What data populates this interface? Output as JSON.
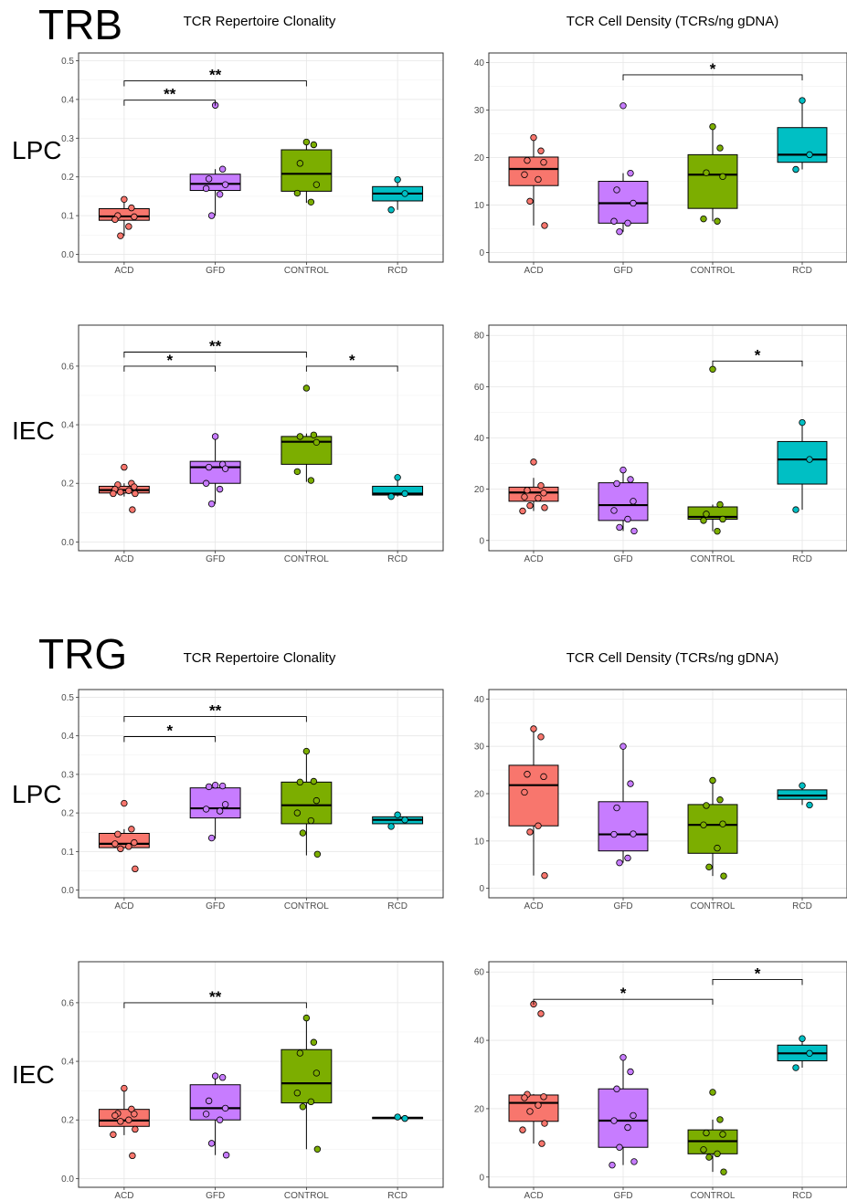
{
  "figure": {
    "sections": [
      {
        "label": "TRB",
        "clonality_title": "TCR Repertoire Clonality",
        "density_title": "TCR Cell Density (TCRs/ng gDNA)"
      },
      {
        "label": "TRG",
        "clonality_title": "TCR Repertoire Clonality",
        "density_title": "TCR Cell Density (TCRs/ng gDNA)"
      }
    ],
    "row_labels": [
      "LPC",
      "IEC",
      "LPC",
      "IEC"
    ],
    "group_colors": {
      "ACD": "#F8766D",
      "GFD": "#C77CFF",
      "CONTROL": "#7CAE00",
      "RCD": "#00BFC4"
    }
  },
  "chart_data": [
    {
      "type": "box",
      "section": "TRB",
      "row": "LPC",
      "title": "TCR Repertoire Clonality",
      "categories": [
        "ACD",
        "GFD",
        "CONTROL",
        "RCD"
      ],
      "ylim": [
        -0.02,
        0.52
      ],
      "yticks": [
        0.0,
        0.1,
        0.2,
        0.3,
        0.4,
        0.5
      ],
      "ytick_labels": [
        "0.0",
        "0.1",
        "0.2",
        "0.3",
        "0.4",
        "0.5"
      ],
      "boxes": [
        {
          "min": 0.048,
          "q1": 0.088,
          "median": 0.098,
          "q3": 0.118,
          "max": 0.142
        },
        {
          "min": 0.1,
          "q1": 0.165,
          "median": 0.182,
          "q3": 0.207,
          "max": 0.22
        },
        {
          "min": 0.133,
          "q1": 0.163,
          "median": 0.208,
          "q3": 0.27,
          "max": 0.29
        },
        {
          "min": 0.115,
          "q1": 0.138,
          "median": 0.157,
          "q3": 0.175,
          "max": 0.193
        }
      ],
      "points": [
        {
          "group": "ACD",
          "values": [
            0.142,
            0.12,
            0.1,
            0.097,
            0.09,
            0.072,
            0.048
          ]
        },
        {
          "group": "GFD",
          "values": [
            0.385,
            0.22,
            0.195,
            0.18,
            0.17,
            0.155,
            0.1
          ]
        },
        {
          "group": "CONTROL",
          "values": [
            0.29,
            0.283,
            0.235,
            0.18,
            0.158,
            0.135
          ]
        },
        {
          "group": "RCD",
          "values": [
            0.193,
            0.157,
            0.115
          ]
        }
      ],
      "significance": [
        {
          "from": "ACD",
          "to": "GFD",
          "y": 0.398,
          "label": "**"
        },
        {
          "from": "ACD",
          "to": "CONTROL",
          "y": 0.448,
          "label": "**"
        }
      ]
    },
    {
      "type": "box",
      "section": "TRB",
      "row": "LPC",
      "title": "TCR Cell Density (TCRs/ng gDNA)",
      "categories": [
        "ACD",
        "GFD",
        "CONTROL",
        "RCD"
      ],
      "ylim": [
        -2,
        42
      ],
      "yticks": [
        0,
        10,
        20,
        30,
        40
      ],
      "ytick_labels": [
        "0",
        "10",
        "20",
        "30",
        "40"
      ],
      "boxes": [
        {
          "min": 5.7,
          "q1": 14.1,
          "median": 17.6,
          "q3": 20.1,
          "max": 24.2
        },
        {
          "min": 4.4,
          "q1": 6.2,
          "median": 10.4,
          "q3": 15.0,
          "max": 16.7
        },
        {
          "min": 6.6,
          "q1": 9.3,
          "median": 16.4,
          "q3": 20.6,
          "max": 26.5
        },
        {
          "min": 17.5,
          "q1": 19.0,
          "median": 20.6,
          "q3": 26.3,
          "max": 32.0
        }
      ],
      "points": [
        {
          "group": "ACD",
          "values": [
            24.2,
            21.4,
            19.4,
            19.0,
            16.4,
            15.4,
            10.8,
            5.7
          ]
        },
        {
          "group": "GFD",
          "values": [
            30.9,
            16.7,
            13.2,
            10.4,
            6.6,
            6.2,
            4.4
          ]
        },
        {
          "group": "CONTROL",
          "values": [
            26.5,
            22.0,
            16.8,
            16.0,
            7.1,
            6.6
          ]
        },
        {
          "group": "RCD",
          "values": [
            32.0,
            20.6,
            17.5
          ]
        }
      ],
      "significance": [
        {
          "from": "GFD",
          "to": "RCD",
          "y": 37.4,
          "label": "*"
        }
      ]
    },
    {
      "type": "box",
      "section": "TRB",
      "row": "IEC",
      "title": "",
      "categories": [
        "ACD",
        "GFD",
        "CONTROL",
        "RCD"
      ],
      "ylim": [
        -0.03,
        0.74
      ],
      "yticks": [
        0.0,
        0.2,
        0.4,
        0.6
      ],
      "ytick_labels": [
        "0.0",
        "0.2",
        "0.4",
        "0.6"
      ],
      "boxes": [
        {
          "min": 0.155,
          "q1": 0.167,
          "median": 0.177,
          "q3": 0.19,
          "max": 0.2
        },
        {
          "min": 0.13,
          "q1": 0.2,
          "median": 0.255,
          "q3": 0.275,
          "max": 0.36
        },
        {
          "min": 0.205,
          "q1": 0.265,
          "median": 0.342,
          "q3": 0.36,
          "max": 0.37
        },
        {
          "min": 0.155,
          "q1": 0.16,
          "median": 0.165,
          "q3": 0.19,
          "max": 0.22
        }
      ],
      "points": [
        {
          "group": "ACD",
          "values": [
            0.255,
            0.2,
            0.195,
            0.188,
            0.18,
            0.175,
            0.17,
            0.165,
            0.165,
            0.11
          ]
        },
        {
          "group": "GFD",
          "values": [
            0.36,
            0.265,
            0.255,
            0.25,
            0.2,
            0.18,
            0.13
          ]
        },
        {
          "group": "CONTROL",
          "values": [
            0.525,
            0.365,
            0.36,
            0.34,
            0.24,
            0.21
          ]
        },
        {
          "group": "RCD",
          "values": [
            0.22,
            0.165,
            0.155
          ]
        }
      ],
      "significance": [
        {
          "from": "ACD",
          "to": "GFD",
          "y": 0.6,
          "label": "*"
        },
        {
          "from": "ACD",
          "to": "CONTROL",
          "y": 0.648,
          "label": "**"
        },
        {
          "from": "CONTROL",
          "to": "RCD",
          "y": 0.6,
          "label": "*"
        }
      ]
    },
    {
      "type": "box",
      "section": "TRB",
      "row": "IEC",
      "title": "",
      "categories": [
        "ACD",
        "GFD",
        "CONTROL",
        "RCD"
      ],
      "ylim": [
        -4,
        84
      ],
      "yticks": [
        0,
        20,
        40,
        60,
        80
      ],
      "ytick_labels": [
        "0",
        "20",
        "40",
        "60",
        "80"
      ],
      "boxes": [
        {
          "min": 11.5,
          "q1": 15.3,
          "median": 18.7,
          "q3": 20.8,
          "max": 24.4
        },
        {
          "min": 3.7,
          "q1": 7.8,
          "median": 13.8,
          "q3": 22.5,
          "max": 27.5
        },
        {
          "min": 3.6,
          "q1": 8.3,
          "median": 9.2,
          "q3": 13.1,
          "max": 14.0
        },
        {
          "min": 12.0,
          "q1": 22.0,
          "median": 31.6,
          "q3": 38.6,
          "max": 46.0
        }
      ],
      "points": [
        {
          "group": "ACD",
          "values": [
            30.6,
            21.4,
            19.6,
            18.5,
            17.0,
            16.5,
            13.6,
            12.8,
            11.5
          ]
        },
        {
          "group": "GFD",
          "values": [
            27.5,
            23.8,
            22.2,
            15.3,
            11.7,
            8.3,
            5.1,
            3.7
          ]
        },
        {
          "group": "CONTROL",
          "values": [
            66.8,
            14.0,
            10.3,
            8.3,
            7.8,
            3.6
          ]
        },
        {
          "group": "RCD",
          "values": [
            46.0,
            31.6,
            12.0
          ]
        }
      ],
      "significance": [
        {
          "from": "CONTROL",
          "to": "RCD",
          "y": 70.0,
          "label": "*"
        }
      ]
    },
    {
      "type": "box",
      "section": "TRG",
      "row": "LPC",
      "title": "TCR Repertoire Clonality",
      "categories": [
        "ACD",
        "GFD",
        "CONTROL",
        "RCD"
      ],
      "ylim": [
        -0.02,
        0.52
      ],
      "yticks": [
        0.0,
        0.1,
        0.2,
        0.3,
        0.4,
        0.5
      ],
      "ytick_labels": [
        "0.0",
        "0.1",
        "0.2",
        "0.3",
        "0.4",
        "0.5"
      ],
      "boxes": [
        {
          "min": 0.11,
          "q1": 0.11,
          "median": 0.12,
          "q3": 0.147,
          "max": 0.158
        },
        {
          "min": 0.133,
          "q1": 0.187,
          "median": 0.212,
          "q3": 0.265,
          "max": 0.272
        },
        {
          "min": 0.09,
          "q1": 0.172,
          "median": 0.22,
          "q3": 0.28,
          "max": 0.36
        },
        {
          "min": 0.172,
          "q1": 0.172,
          "median": 0.182,
          "q3": 0.19,
          "max": 0.195
        }
      ],
      "points": [
        {
          "group": "ACD",
          "values": [
            0.225,
            0.158,
            0.145,
            0.123,
            0.12,
            0.113,
            0.107,
            0.055
          ]
        },
        {
          "group": "GFD",
          "values": [
            0.272,
            0.27,
            0.268,
            0.222,
            0.21,
            0.205,
            0.135
          ]
        },
        {
          "group": "CONTROL",
          "values": [
            0.36,
            0.282,
            0.28,
            0.232,
            0.2,
            0.18,
            0.148,
            0.093
          ]
        },
        {
          "group": "RCD",
          "values": [
            0.195,
            0.182,
            0.165
          ]
        }
      ],
      "significance": [
        {
          "from": "ACD",
          "to": "GFD",
          "y": 0.398,
          "label": "*"
        },
        {
          "from": "ACD",
          "to": "CONTROL",
          "y": 0.45,
          "label": "**"
        }
      ]
    },
    {
      "type": "box",
      "section": "TRG",
      "row": "LPC",
      "title": "TCR Cell Density (TCRs/ng gDNA)",
      "categories": [
        "ACD",
        "GFD",
        "CONTROL",
        "RCD"
      ],
      "ylim": [
        -2,
        42
      ],
      "yticks": [
        0,
        10,
        20,
        30,
        40
      ],
      "ytick_labels": [
        "0",
        "10",
        "20",
        "30",
        "40"
      ],
      "boxes": [
        {
          "min": 2.7,
          "q1": 13.2,
          "median": 21.8,
          "q3": 26.0,
          "max": 33.7
        },
        {
          "min": 5.4,
          "q1": 7.9,
          "median": 11.4,
          "q3": 18.3,
          "max": 30.0
        },
        {
          "min": 2.6,
          "q1": 7.4,
          "median": 13.4,
          "q3": 17.7,
          "max": 22.8
        },
        {
          "min": 17.6,
          "q1": 18.8,
          "median": 19.6,
          "q3": 20.8,
          "max": 21.7
        }
      ],
      "points": [
        {
          "group": "ACD",
          "values": [
            33.7,
            32.0,
            24.1,
            23.6,
            20.3,
            13.2,
            11.9,
            2.7
          ]
        },
        {
          "group": "GFD",
          "values": [
            30.0,
            22.1,
            17.0,
            11.5,
            11.4,
            6.4,
            5.4
          ]
        },
        {
          "group": "CONTROL",
          "values": [
            22.8,
            18.7,
            17.5,
            13.6,
            13.4,
            8.5,
            4.5,
            2.6
          ]
        },
        {
          "group": "RCD",
          "values": [
            21.7,
            17.6
          ]
        }
      ],
      "significance": []
    },
    {
      "type": "box",
      "section": "TRG",
      "row": "IEC",
      "title": "",
      "categories": [
        "ACD",
        "GFD",
        "CONTROL",
        "RCD"
      ],
      "ylim": [
        -0.03,
        0.74
      ],
      "yticks": [
        0.0,
        0.2,
        0.4,
        0.6
      ],
      "ytick_labels": [
        "0.0",
        "0.2",
        "0.4",
        "0.6"
      ],
      "boxes": [
        {
          "min": 0.148,
          "q1": 0.178,
          "median": 0.198,
          "q3": 0.236,
          "max": 0.308
        },
        {
          "min": 0.08,
          "q1": 0.2,
          "median": 0.24,
          "q3": 0.32,
          "max": 0.35
        },
        {
          "min": 0.1,
          "q1": 0.258,
          "median": 0.325,
          "q3": 0.44,
          "max": 0.548
        },
        {
          "min": 0.205,
          "q1": 0.205,
          "median": 0.207,
          "q3": 0.209,
          "max": 0.21
        }
      ],
      "points": [
        {
          "group": "ACD",
          "values": [
            0.308,
            0.237,
            0.222,
            0.22,
            0.215,
            0.2,
            0.195,
            0.168,
            0.15,
            0.078
          ]
        },
        {
          "group": "GFD",
          "values": [
            0.35,
            0.345,
            0.265,
            0.24,
            0.22,
            0.2,
            0.12,
            0.08
          ]
        },
        {
          "group": "CONTROL",
          "values": [
            0.548,
            0.465,
            0.428,
            0.36,
            0.292,
            0.262,
            0.245,
            0.1
          ]
        },
        {
          "group": "RCD",
          "values": [
            0.21,
            0.205
          ]
        }
      ],
      "significance": [
        {
          "from": "ACD",
          "to": "CONTROL",
          "y": 0.6,
          "label": "**"
        }
      ]
    },
    {
      "type": "box",
      "section": "TRG",
      "row": "IEC",
      "title": "",
      "categories": [
        "ACD",
        "GFD",
        "CONTROL",
        "RCD"
      ],
      "ylim": [
        -3,
        63
      ],
      "yticks": [
        0,
        20,
        40,
        60
      ],
      "ytick_labels": [
        "0",
        "20",
        "40",
        "60"
      ],
      "boxes": [
        {
          "min": 9.8,
          "q1": 16.3,
          "median": 21.7,
          "q3": 24.0,
          "max": 24.3
        },
        {
          "min": 3.5,
          "q1": 8.7,
          "median": 16.5,
          "q3": 25.8,
          "max": 35.0
        },
        {
          "min": 1.5,
          "q1": 6.8,
          "median": 10.5,
          "q3": 13.8,
          "max": 16.8
        },
        {
          "min": 32.0,
          "q1": 34.0,
          "median": 36.2,
          "q3": 38.6,
          "max": 40.5
        }
      ],
      "points": [
        {
          "group": "ACD",
          "values": [
            50.6,
            47.8,
            24.2,
            23.5,
            23.2,
            21.0,
            19.2,
            15.7,
            13.8,
            9.8
          ]
        },
        {
          "group": "GFD",
          "values": [
            35.0,
            30.8,
            25.8,
            18.0,
            16.5,
            14.5,
            8.7,
            4.5,
            3.5
          ]
        },
        {
          "group": "CONTROL",
          "values": [
            24.8,
            16.8,
            12.9,
            12.5,
            8.0,
            6.8,
            5.8,
            1.5
          ]
        },
        {
          "group": "RCD",
          "values": [
            40.5,
            36.2,
            32.0
          ]
        }
      ],
      "significance": [
        {
          "from": "ACD",
          "to": "CONTROL",
          "y": 52.0,
          "label": "*"
        },
        {
          "from": "CONTROL",
          "to": "RCD",
          "y": 57.8,
          "label": "*"
        }
      ]
    }
  ]
}
